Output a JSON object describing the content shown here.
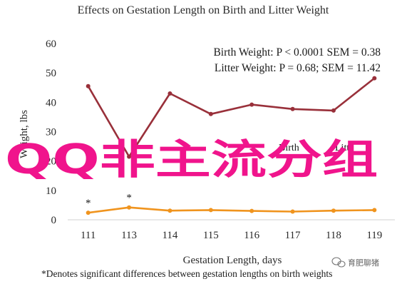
{
  "chart_data": {
    "type": "line",
    "title": "Effects on Gestation Length on Birth and Litter Weight",
    "xlabel": "Gestation Length, days",
    "ylabel": "Weight, lbs",
    "categories": [
      "111",
      "113",
      "114",
      "115",
      "116",
      "117",
      "118",
      "119"
    ],
    "ylim": [
      0,
      60
    ],
    "yticks": [
      0,
      10,
      20,
      30,
      40,
      50,
      60
    ],
    "grid": false,
    "series": [
      {
        "name": "Litter Weight",
        "color": "#99303a",
        "values": [
          45.5,
          21.5,
          43,
          36,
          39.2,
          37.7,
          37.2,
          48.2
        ]
      },
      {
        "name": "Birth Weight",
        "color": "#f0941e",
        "values": [
          2.4,
          4.2,
          3.1,
          3.3,
          3.0,
          2.8,
          3.1,
          3.3
        ]
      }
    ],
    "annotations": [
      "Birth Weight: P < 0.0001 SEM = 0.38",
      "Litter Weight: P = 0.68; SEM = 11.42"
    ],
    "significance_markers": [
      {
        "category": "111",
        "label": "*"
      },
      {
        "category": "113",
        "label": "*"
      }
    ],
    "footnote": "*Denotes significant differences between gestation lengths on birth weights"
  },
  "overlay_text": "QQ非主流分组",
  "legend_fragments": [
    "Birth",
    "Litte"
  ],
  "watermark": {
    "text": "育肥聊猪",
    "icon": "wechat-icon"
  }
}
